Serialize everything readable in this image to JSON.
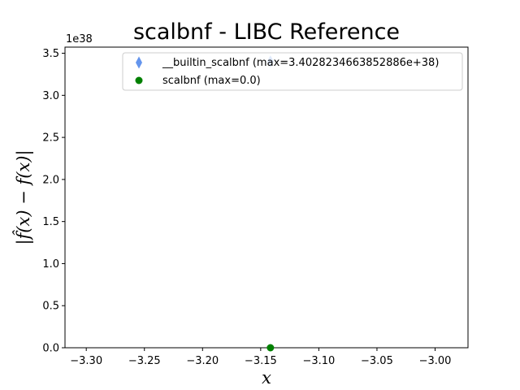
{
  "chart_data": {
    "type": "scatter",
    "title": "scalbnf - LIBC Reference",
    "xlabel": "x",
    "ylabel": "|f̂(x) − f(x)|",
    "y_offset_label": "1e38",
    "xlim": [
      -3.3183,
      -2.9717
    ],
    "ylim": [
      0,
      3.5729
    ],
    "x_ticks": [
      -3.3,
      -3.25,
      -3.2,
      -3.15,
      -3.1,
      -3.05,
      -3.0
    ],
    "x_tick_labels": [
      "−3.30",
      "−3.25",
      "−3.20",
      "−3.15",
      "−3.10",
      "−3.05",
      "−3.00"
    ],
    "y_ticks": [
      0.0,
      0.5,
      1.0,
      1.5,
      2.0,
      2.5,
      3.0,
      3.5
    ],
    "y_tick_labels": [
      "0.0",
      "0.5",
      "1.0",
      "1.5",
      "2.0",
      "2.5",
      "3.0",
      "3.5"
    ],
    "grid": false,
    "legend_position": "top-right",
    "series": [
      {
        "name": "__builtin_scalbnf (max=3.4028234663852886e+38)",
        "marker": "thin_diamond",
        "color": "#6495ED",
        "points": [
          {
            "x": -3.1416,
            "y": 3.4028
          }
        ]
      },
      {
        "name": "scalbnf (max=0.0)",
        "marker": "circle",
        "color": "#008000",
        "points": [
          {
            "x": -3.1416,
            "y": 0.0
          }
        ]
      }
    ]
  }
}
